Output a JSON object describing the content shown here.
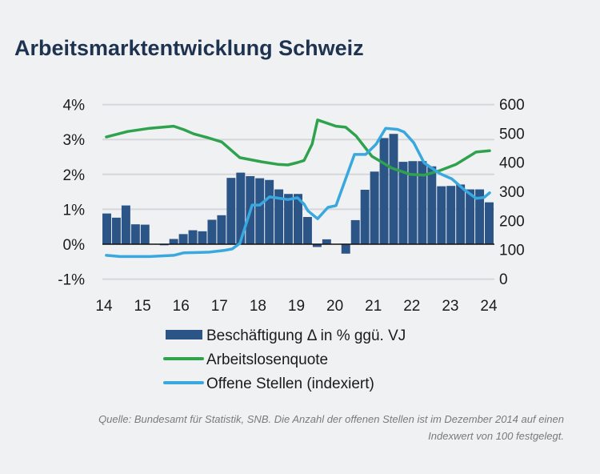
{
  "title": "Arbeitsmarktentwicklung Schweiz",
  "footnote": [
    "Quelle: Bundesamt für Statistik, SNB. Die Anzahl der offenen Stellen ist im Dezember 2014 auf einen",
    "Indexwert von 100 festgelegt."
  ],
  "chart_data": {
    "type": "bar+line",
    "title": "Arbeitsmarktentwicklung Schweiz",
    "x_tick_labels": [
      "14",
      "15",
      "16",
      "17",
      "18",
      "19",
      "20",
      "21",
      "22",
      "23",
      "24"
    ],
    "x_ticks": [
      2014,
      2015,
      2016,
      2017,
      2018,
      2019,
      2020,
      2021,
      2022,
      2023,
      2024
    ],
    "xlim": [
      2014,
      2024.1
    ],
    "y_left": {
      "ylim": [
        -1,
        4
      ],
      "ticks": [
        -1,
        0,
        1,
        2,
        3,
        4
      ],
      "tick_labels": [
        "-1%",
        "0%",
        "1%",
        "2%",
        "3%",
        "4%"
      ]
    },
    "y_right": {
      "ylim": [
        0,
        600
      ],
      "ticks": [
        0,
        100,
        200,
        300,
        400,
        500,
        600
      ],
      "tick_labels": [
        "0",
        "100",
        "200",
        "300",
        "400",
        "500",
        "600"
      ]
    },
    "grid": true,
    "legend_placement": "bottom",
    "colors": {
      "bars": "#2b5587",
      "green": "#2ea24c",
      "blue": "#38a8de",
      "grid": "#d6d7da",
      "title": "#1e3350"
    },
    "bar_series": {
      "name": "Beschäftigung Δ in % ggü. VJ",
      "axis": "left",
      "categories": [
        "2014Q1",
        "2014Q2",
        "2014Q3",
        "2014Q4",
        "2015Q1",
        "2015Q2",
        "2015Q3",
        "2015Q4",
        "2016Q1",
        "2016Q2",
        "2016Q3",
        "2016Q4",
        "2017Q1",
        "2017Q2",
        "2017Q3",
        "2017Q4",
        "2018Q1",
        "2018Q2",
        "2018Q3",
        "2018Q4",
        "2019Q1",
        "2019Q2",
        "2019Q3",
        "2019Q4",
        "2020Q1",
        "2020Q2",
        "2020Q3",
        "2020Q4",
        "2021Q1",
        "2021Q2",
        "2021Q3",
        "2021Q4",
        "2022Q1",
        "2022Q2",
        "2022Q3",
        "2022Q4",
        "2023Q1",
        "2023Q2",
        "2023Q3",
        "2023Q4",
        "2024Q1"
      ],
      "values": [
        0.88,
        0.76,
        1.11,
        0.57,
        0.56,
        0.01,
        -0.03,
        0.15,
        0.29,
        0.4,
        0.37,
        0.7,
        0.83,
        1.9,
        2.05,
        1.95,
        1.89,
        1.84,
        1.57,
        1.44,
        1.44,
        0.78,
        -0.08,
        0.14,
        0.01,
        -0.27,
        0.69,
        1.56,
        2.08,
        3.04,
        3.16,
        2.36,
        2.38,
        2.38,
        2.23,
        1.66,
        1.67,
        1.71,
        1.57,
        1.57,
        1.2
      ]
    },
    "line_series": [
      {
        "name": "Arbeitslosenquote",
        "axis": "left",
        "points": [
          [
            2014.06,
            3.07
          ],
          [
            2014.62,
            3.23
          ],
          [
            2015.19,
            3.32
          ],
          [
            2015.81,
            3.38
          ],
          [
            2016.08,
            3.28
          ],
          [
            2016.33,
            3.16
          ],
          [
            2016.7,
            3.05
          ],
          [
            2017.06,
            2.93
          ],
          [
            2017.53,
            2.48
          ],
          [
            2018.1,
            2.36
          ],
          [
            2018.51,
            2.29
          ],
          [
            2018.78,
            2.27
          ],
          [
            2019.03,
            2.34
          ],
          [
            2019.2,
            2.4
          ],
          [
            2019.41,
            2.87
          ],
          [
            2019.55,
            3.56
          ],
          [
            2020.03,
            3.38
          ],
          [
            2020.28,
            3.35
          ],
          [
            2020.55,
            3.1
          ],
          [
            2020.96,
            2.52
          ],
          [
            2021.48,
            2.18
          ],
          [
            2021.96,
            2.0
          ],
          [
            2022.32,
            1.98
          ],
          [
            2022.73,
            2.11
          ],
          [
            2023.15,
            2.29
          ],
          [
            2023.67,
            2.64
          ],
          [
            2024.02,
            2.68
          ]
        ]
      },
      {
        "name": "Offene Stellen (indexiert)",
        "axis": "right",
        "points": [
          [
            2014.06,
            80
          ],
          [
            2014.42,
            76
          ],
          [
            2015.19,
            76
          ],
          [
            2015.81,
            80
          ],
          [
            2016.08,
            89
          ],
          [
            2016.74,
            91
          ],
          [
            2017.12,
            97
          ],
          [
            2017.33,
            102
          ],
          [
            2017.53,
            121
          ],
          [
            2017.85,
            253
          ],
          [
            2018.05,
            253
          ],
          [
            2018.3,
            281
          ],
          [
            2018.78,
            272
          ],
          [
            2019.03,
            278
          ],
          [
            2019.2,
            256
          ],
          [
            2019.3,
            233
          ],
          [
            2019.55,
            206
          ],
          [
            2019.82,
            245
          ],
          [
            2020.03,
            251
          ],
          [
            2020.51,
            427
          ],
          [
            2020.8,
            427
          ],
          [
            2021.07,
            462
          ],
          [
            2021.32,
            517
          ],
          [
            2021.63,
            513
          ],
          [
            2021.8,
            504
          ],
          [
            2022.05,
            467
          ],
          [
            2022.32,
            398
          ],
          [
            2022.73,
            361
          ],
          [
            2023.04,
            343
          ],
          [
            2023.36,
            306
          ],
          [
            2023.67,
            276
          ],
          [
            2023.88,
            279
          ],
          [
            2024.02,
            295
          ]
        ]
      }
    ]
  }
}
